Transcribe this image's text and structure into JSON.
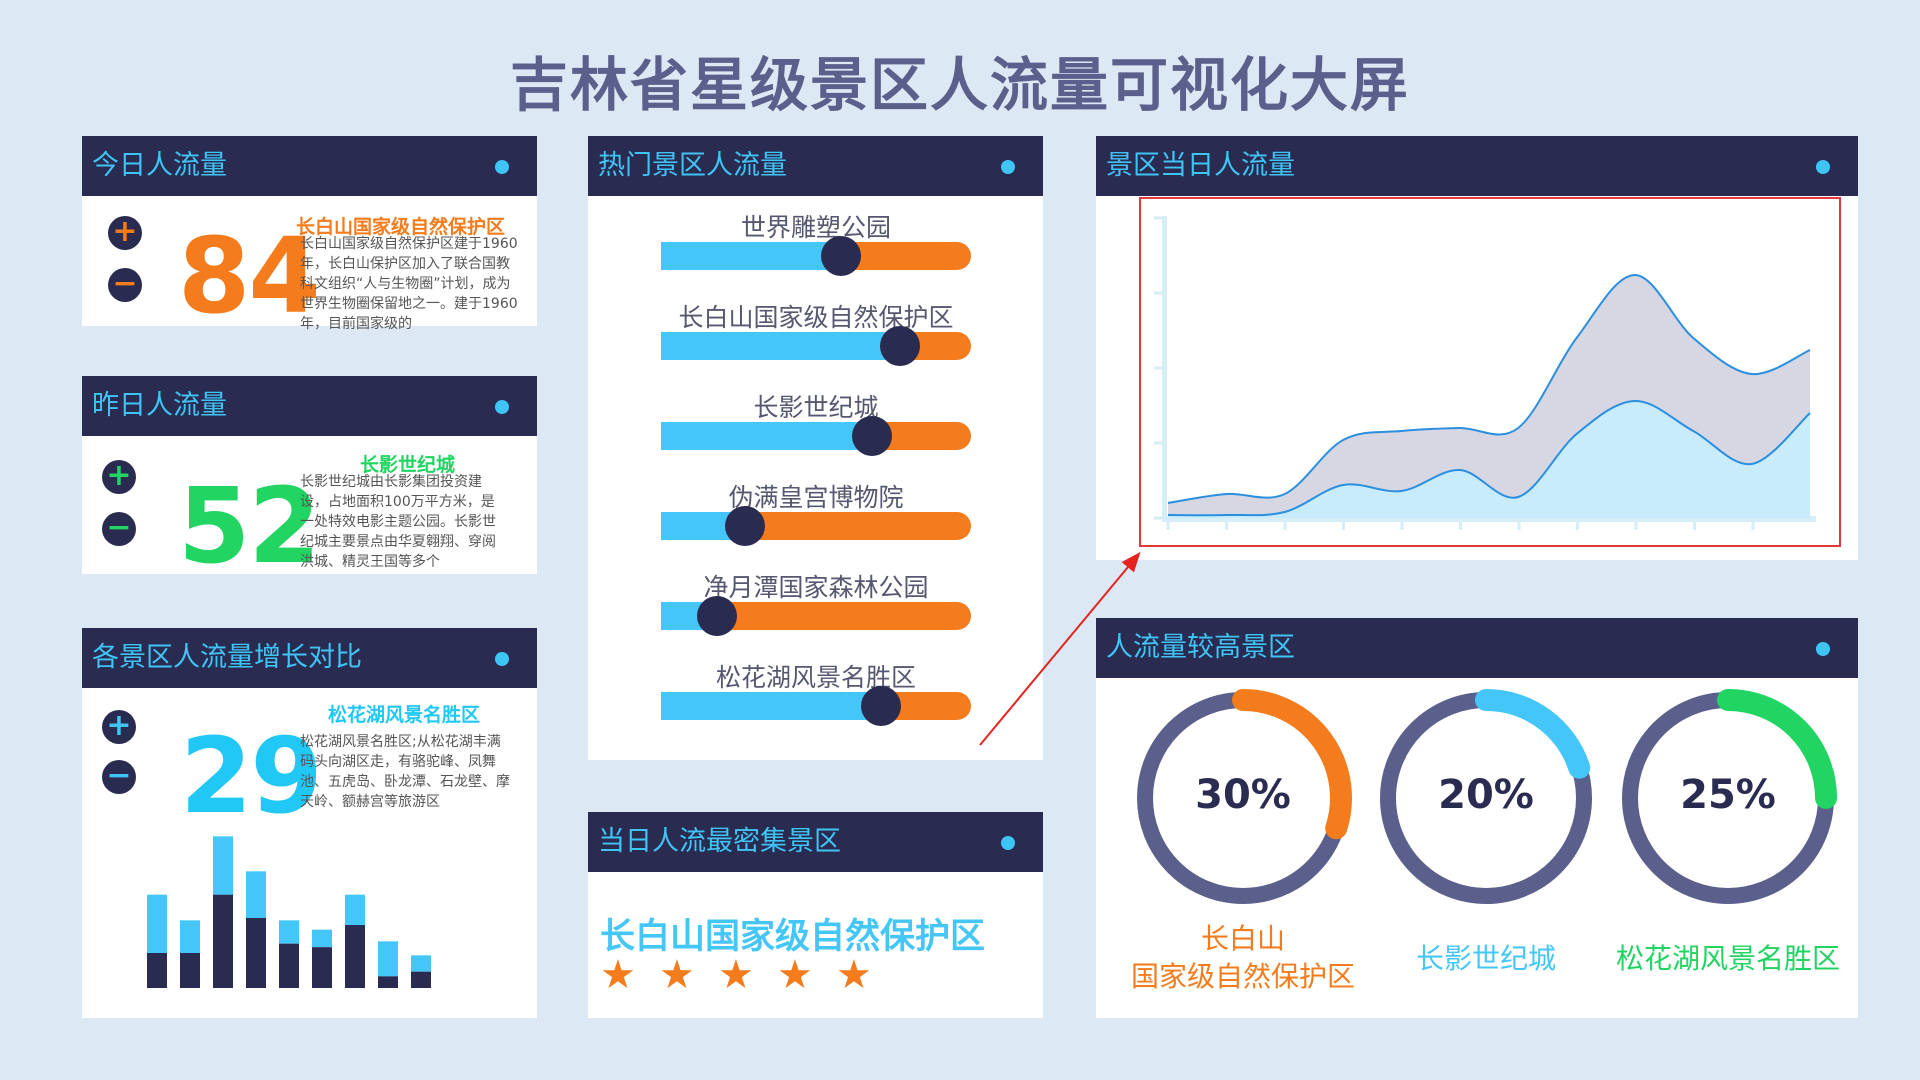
{
  "title": "吉林省星级景区人流量可视化大屏",
  "colors": {
    "panel_head_bg": "#2a2b50",
    "accent_blue": "#3fc4f6",
    "accent_orange": "#f47c1d",
    "accent_green": "#22d462",
    "ring_base": "#5b5f8c"
  },
  "today": {
    "header": "今日人流量",
    "value": "84",
    "spot_name": "长白山国家级自然保护区",
    "spot_desc": "长白山国家级自然保护区建于1960年，长白山保护区加入了联合国教科文组织“人与生物圈”计划，成为世界生物圈保留地之一。建于1960年，目前国家级的"
  },
  "yesterday": {
    "header": "昨日人流量",
    "value": "52",
    "spot_name": "长影世纪城",
    "spot_desc": "长影世纪城由长影集团投资建设，占地面积100万平方米，是一处特效电影主题公园。长影世纪城主要景点由华夏翱翔、穿阅洪城、精灵王国等多个"
  },
  "growth": {
    "header": "各景区人流量增长对比",
    "value": "29",
    "spot_name": "松花湖风景名胜区",
    "spot_desc": "松花湖风景名胜区;从松花湖丰满码头向湖区走，有骆驼峰、凤舞池、五虎岛、卧龙潭、石龙壁、摩天岭、额赫宫等旅游区"
  },
  "hot": {
    "header": "热门景区人流量",
    "items": [
      {
        "label": "世界雕塑公园",
        "value": 0.58
      },
      {
        "label": "长白山国家级自然保护区",
        "value": 0.77
      },
      {
        "label": "长影世纪城",
        "value": 0.68
      },
      {
        "label": "伪满皇宫博物院",
        "value": 0.27
      },
      {
        "label": "净月潭国家森林公园",
        "value": 0.18
      },
      {
        "label": "松花湖风景名胜区",
        "value": 0.71
      }
    ]
  },
  "densest": {
    "header": "当日人流最密集景区",
    "name": "长白山国家级自然保护区",
    "stars": 5
  },
  "daily": {
    "header": "景区当日人流量"
  },
  "high": {
    "header": "人流量较高景区",
    "items": [
      {
        "pct_text": "30%",
        "value": 0.3,
        "label_line1": "长白山",
        "label_line2": "国家级自然保护区",
        "color": "#f47c1d"
      },
      {
        "pct_text": "20%",
        "value": 0.2,
        "label_line1": "长影世纪城",
        "label_line2": "",
        "color": "#44c7f8"
      },
      {
        "pct_text": "25%",
        "value": 0.25,
        "label_line1": "松花湖风景名胜区",
        "label_line2": "",
        "color": "#22d462"
      }
    ]
  },
  "chart_data": [
    {
      "type": "area",
      "x": [
        0,
        1,
        2,
        3,
        4,
        5,
        6,
        7,
        8,
        9,
        10,
        11
      ],
      "series": [
        {
          "values": [
            0.5,
            0.8,
            0.8,
            2.6,
            2.9,
            3.0,
            3.0,
            6.0,
            8.1,
            6.0,
            4.8,
            5.6
          ]
        },
        {
          "values": [
            0.1,
            0.1,
            0.2,
            1.1,
            0.9,
            1.6,
            0.7,
            2.8,
            3.9,
            2.9,
            1.8,
            3.5
          ]
        }
      ],
      "ylim": [
        0,
        10
      ],
      "grid": false
    },
    {
      "type": "bar",
      "categories": [
        "",
        "",
        "",
        "",
        "",
        "",
        "",
        "",
        ""
      ],
      "series": [
        {
          "values": [
            80,
            58,
            130,
            100,
            58,
            50,
            80,
            40,
            28
          ]
        },
        {
          "values": [
            50,
            28,
            50,
            40,
            20,
            15,
            26,
            30,
            14
          ]
        }
      ],
      "ylim": [
        0,
        150
      ]
    }
  ]
}
